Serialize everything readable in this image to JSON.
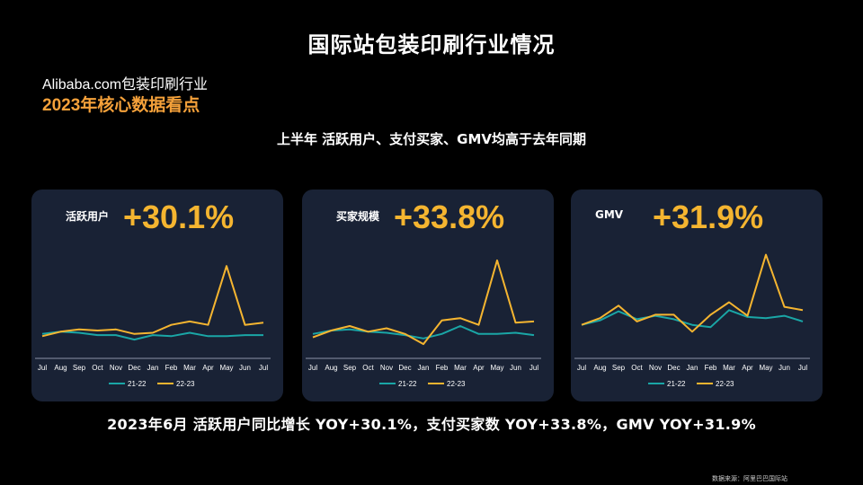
{
  "header": {
    "title": "国际站包装印刷行业情况",
    "brand_line1": "Alibaba.com包装印刷行业",
    "brand_line2": "2023年核心数据看点",
    "subtitle": "上半年  活跃用户、支付买家、GMV均高于去年同期"
  },
  "colors": {
    "series_2122": "#1aa6a6",
    "series_2223": "#f5b530",
    "card_bg": "#192235",
    "accent": "#f5a13a"
  },
  "chart_data": [
    {
      "type": "line",
      "metric_label": "活跃用户",
      "yoy": "+30.1%",
      "categories": [
        "Jul",
        "Aug",
        "Sep",
        "Oct",
        "Nov",
        "Dec",
        "Jan",
        "Feb",
        "Mar",
        "Apr",
        "May",
        "Jun",
        "Jul"
      ],
      "ylim": [
        0,
        100
      ],
      "series": [
        {
          "name": "21-22",
          "values": [
            20,
            22,
            21,
            19,
            19,
            15,
            19,
            18,
            21,
            18,
            18,
            19,
            19
          ]
        },
        {
          "name": "22-23",
          "values": [
            18,
            22,
            24,
            23,
            24,
            20,
            21,
            28,
            31,
            28,
            80,
            28,
            30
          ]
        }
      ],
      "legend": "bottom"
    },
    {
      "type": "line",
      "metric_label": "买家规模",
      "yoy": "+33.8%",
      "categories": [
        "Jul",
        "Aug",
        "Sep",
        "Oct",
        "Nov",
        "Dec",
        "Jan",
        "Feb",
        "Mar",
        "Apr",
        "May",
        "Jun",
        "Jul"
      ],
      "ylim": [
        0,
        100
      ],
      "series": [
        {
          "name": "21-22",
          "values": [
            20,
            23,
            24,
            22,
            21,
            19,
            16,
            20,
            27,
            20,
            20,
            21,
            19
          ]
        },
        {
          "name": "22-23",
          "values": [
            17,
            23,
            27,
            22,
            25,
            20,
            11,
            32,
            34,
            28,
            85,
            30,
            31
          ]
        }
      ],
      "legend": "bottom"
    },
    {
      "type": "line",
      "metric_label": "GMV",
      "yoy": "+31.9%",
      "categories": [
        "Jul",
        "Aug",
        "Sep",
        "Oct",
        "Nov",
        "Dec",
        "Jan",
        "Feb",
        "Mar",
        "Apr",
        "May",
        "Jun",
        "Jul"
      ],
      "ylim": [
        0,
        100
      ],
      "series": [
        {
          "name": "21-22",
          "values": [
            28,
            32,
            40,
            33,
            36,
            33,
            28,
            26,
            41,
            35,
            34,
            36,
            31
          ]
        },
        {
          "name": "22-23",
          "values": [
            28,
            34,
            45,
            31,
            37,
            37,
            22,
            37,
            48,
            36,
            90,
            44,
            41
          ]
        }
      ],
      "legend": "bottom"
    }
  ],
  "summary": "2023年6月 活跃用户同比增长 YOY+30.1%，支付买家数  YOY+33.8%，GMV YOY+31.9%",
  "source": "数据来源：阿里巴巴国际站"
}
